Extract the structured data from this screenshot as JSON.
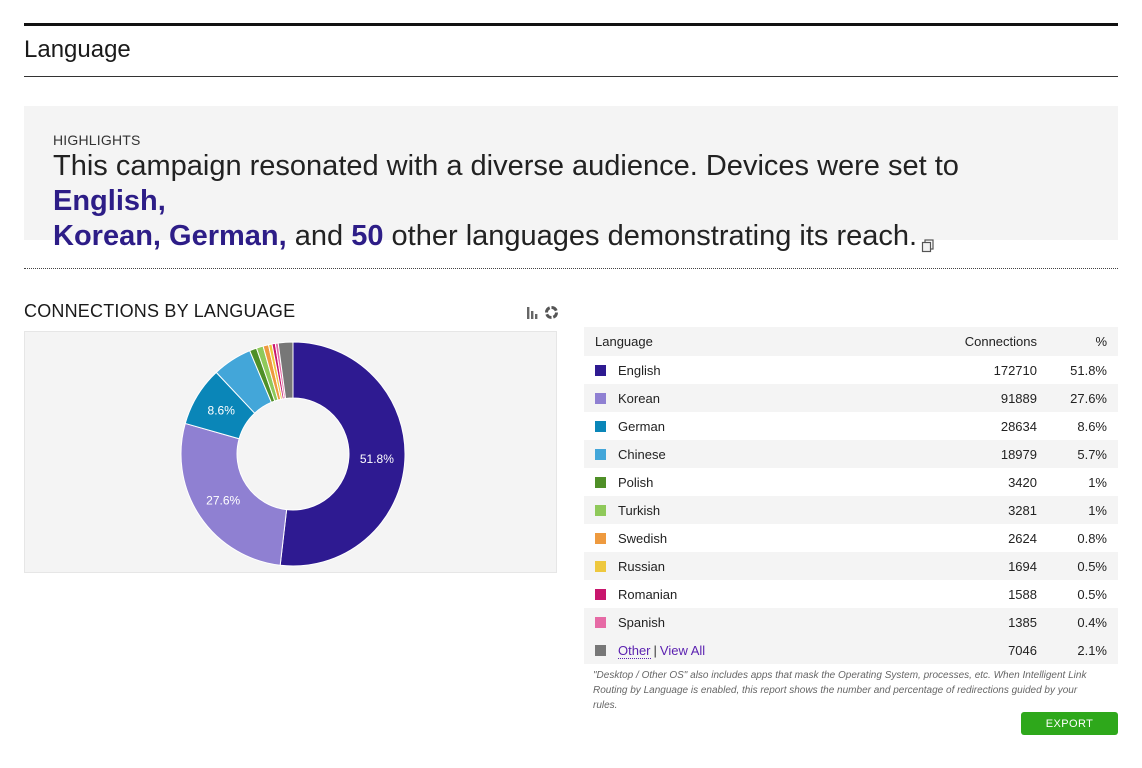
{
  "page": {
    "title": "Language"
  },
  "highlights": {
    "label": "HIGHLIGHTS",
    "text_1": "This campaign resonated with a diverse audience. Devices were set to ",
    "lang_1": "English,",
    "lang_2": "Korean,",
    "lang_3": "German,",
    "text_2": " and ",
    "count": "50",
    "text_3": " other languages demonstrating its reach.",
    "icon": "copy-icon"
  },
  "chart_section": {
    "title": "CONNECTIONS BY LANGUAGE",
    "toggle_icons": [
      "bar-chart-icon",
      "donut-chart-icon"
    ]
  },
  "chart_data": {
    "type": "pie",
    "donut": true,
    "categories": [
      "English",
      "Korean",
      "German",
      "Chinese",
      "Polish",
      "Turkish",
      "Swedish",
      "Russian",
      "Romanian",
      "Spanish",
      "Other"
    ],
    "values": [
      172710,
      91889,
      28634,
      18979,
      3420,
      3281,
      2624,
      1694,
      1588,
      1385,
      7046
    ],
    "colors": [
      "#2e1a91",
      "#8f80d2",
      "#0a86b8",
      "#43a6d9",
      "#4f8f27",
      "#8fc95a",
      "#ee9a3f",
      "#eec83e",
      "#c8166d",
      "#e66aa5",
      "#777777"
    ],
    "data_labels": {
      "English": "51.8%",
      "Korean": "27.6%",
      "German": "8.6%"
    }
  },
  "table": {
    "headers": {
      "language": "Language",
      "connections": "Connections",
      "percent": "%"
    },
    "rows": [
      {
        "language": "English",
        "connections": "172710",
        "percent": "51.8%",
        "color": "#2e1a91"
      },
      {
        "language": "Korean",
        "connections": "91889",
        "percent": "27.6%",
        "color": "#8f80d2"
      },
      {
        "language": "German",
        "connections": "28634",
        "percent": "8.6%",
        "color": "#0a86b8"
      },
      {
        "language": "Chinese",
        "connections": "18979",
        "percent": "5.7%",
        "color": "#43a6d9"
      },
      {
        "language": "Polish",
        "connections": "3420",
        "percent": "1%",
        "color": "#4f8f27"
      },
      {
        "language": "Turkish",
        "connections": "3281",
        "percent": "1%",
        "color": "#8fc95a"
      },
      {
        "language": "Swedish",
        "connections": "2624",
        "percent": "0.8%",
        "color": "#ee9a3f"
      },
      {
        "language": "Russian",
        "connections": "1694",
        "percent": "0.5%",
        "color": "#eec83e"
      },
      {
        "language": "Romanian",
        "connections": "1588",
        "percent": "0.5%",
        "color": "#c8166d"
      },
      {
        "language": "Spanish",
        "connections": "1385",
        "percent": "0.4%",
        "color": "#e66aa5"
      }
    ],
    "other_row": {
      "other_link": "Other",
      "separator": "|",
      "view_all_link": "View All",
      "connections": "7046",
      "percent": "2.1%",
      "color": "#777777"
    },
    "note": "\"Desktop / Other OS\" also includes apps that mask the Operating System, processes, etc. When Intelligent Link Routing by Language is enabled, this report shows the number and percentage of redirections guided by your rules."
  },
  "actions": {
    "export_label": "EXPORT",
    "export_color": "#2ea81b"
  },
  "colors": {
    "accent": "#2d1d87",
    "link": "#5a1fb0"
  }
}
